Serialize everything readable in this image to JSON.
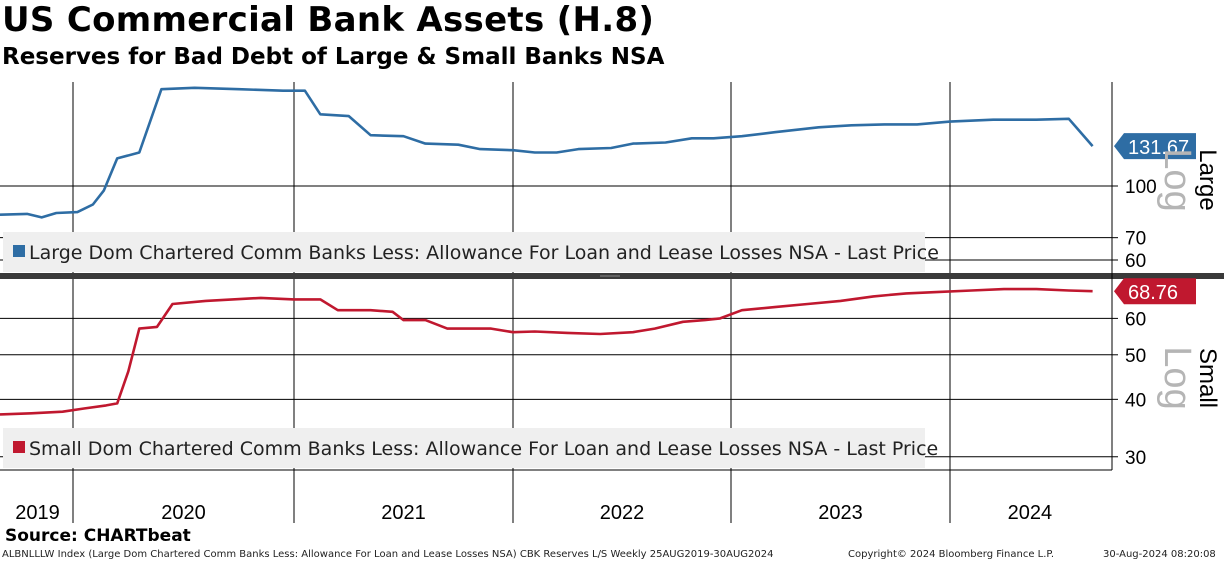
{
  "title": "US Commercial Bank Assets (H.8)",
  "subtitle": "Reserves for Bad Debt of Large & Small Banks NSA",
  "source": "Source: CHARTbeat",
  "footer": {
    "left": "ALBNLLLW Index (Large Dom Chartered Comm Banks Less: Allowance For Loan and Lease Losses NSA) CBK Reserves L/S  Weekly 25AUG2019-30AUG2024",
    "copyright": "Copyright© 2024 Bloomberg Finance L.P.",
    "timestamp": "30-Aug-2024 08:20:08"
  },
  "chart_data": {
    "type": "line",
    "x_tick_labels": [
      "2019",
      "2020",
      "2021",
      "2022",
      "2023",
      "2024"
    ],
    "x_range": [
      "2019-08-25",
      "2024-08-30"
    ],
    "panels": [
      {
        "name": "Large",
        "scale_label": "Log",
        "color": "#2e6da4",
        "legend": "Large Dom Chartered Comm Banks Less: Allowance For Loan and Lease Losses NSA - Last Price",
        "last_value": 131.67,
        "last_value_label": "131.67",
        "y_ticks": [
          60,
          70,
          100
        ],
        "y_range_log": [
          56,
          205
        ],
        "points": [
          [
            2019.65,
            82
          ],
          [
            2019.78,
            82.5
          ],
          [
            2019.85,
            80.5
          ],
          [
            2019.92,
            83
          ],
          [
            2020.02,
            83.5
          ],
          [
            2020.09,
            88
          ],
          [
            2020.14,
            97
          ],
          [
            2020.2,
            121
          ],
          [
            2020.3,
            126
          ],
          [
            2020.4,
            195
          ],
          [
            2020.55,
            197
          ],
          [
            2020.75,
            195
          ],
          [
            2020.95,
            193
          ],
          [
            2021.05,
            193
          ],
          [
            2021.12,
            164
          ],
          [
            2021.25,
            162
          ],
          [
            2021.35,
            142
          ],
          [
            2021.5,
            141
          ],
          [
            2021.6,
            134
          ],
          [
            2021.75,
            133
          ],
          [
            2021.85,
            129
          ],
          [
            2022.0,
            128
          ],
          [
            2022.1,
            126
          ],
          [
            2022.2,
            126
          ],
          [
            2022.3,
            129
          ],
          [
            2022.45,
            130
          ],
          [
            2022.55,
            134
          ],
          [
            2022.7,
            135
          ],
          [
            2022.82,
            139
          ],
          [
            2022.92,
            139
          ],
          [
            2023.05,
            141
          ],
          [
            2023.2,
            145
          ],
          [
            2023.4,
            150
          ],
          [
            2023.55,
            152
          ],
          [
            2023.7,
            153
          ],
          [
            2023.85,
            153
          ],
          [
            2024.0,
            156
          ],
          [
            2024.2,
            158
          ],
          [
            2024.4,
            158
          ],
          [
            2024.55,
            159
          ],
          [
            2024.66,
            131.67
          ]
        ]
      },
      {
        "name": "Small",
        "scale_label": "Log",
        "color": "#c0182f",
        "legend": "Small Dom Chartered Comm Banks Less: Allowance For Loan and Lease Losses NSA - Last Price",
        "last_value": 68.76,
        "last_value_label": "68.76",
        "y_ticks": [
          30,
          40,
          50,
          60
        ],
        "y_range_log": [
          28.5,
          72
        ],
        "points": [
          [
            2019.65,
            37.1
          ],
          [
            2019.8,
            37.3
          ],
          [
            2019.95,
            37.6
          ],
          [
            2020.05,
            38.2
          ],
          [
            2020.15,
            38.8
          ],
          [
            2020.2,
            39.2
          ],
          [
            2020.25,
            46
          ],
          [
            2020.3,
            57
          ],
          [
            2020.38,
            57.5
          ],
          [
            2020.45,
            64.5
          ],
          [
            2020.6,
            65.5
          ],
          [
            2020.85,
            66.5
          ],
          [
            2021.0,
            66
          ],
          [
            2021.12,
            66
          ],
          [
            2021.2,
            62.5
          ],
          [
            2021.35,
            62.5
          ],
          [
            2021.45,
            62
          ],
          [
            2021.5,
            59.5
          ],
          [
            2021.6,
            59.5
          ],
          [
            2021.7,
            57
          ],
          [
            2021.9,
            57
          ],
          [
            2022.0,
            56
          ],
          [
            2022.1,
            56.2
          ],
          [
            2022.25,
            55.8
          ],
          [
            2022.4,
            55.5
          ],
          [
            2022.55,
            56
          ],
          [
            2022.65,
            57
          ],
          [
            2022.78,
            59
          ],
          [
            2022.88,
            59.5
          ],
          [
            2022.95,
            60
          ],
          [
            2023.05,
            62.5
          ],
          [
            2023.2,
            63.5
          ],
          [
            2023.35,
            64.5
          ],
          [
            2023.5,
            65.5
          ],
          [
            2023.65,
            67
          ],
          [
            2023.8,
            68
          ],
          [
            2023.95,
            68.5
          ],
          [
            2024.1,
            69
          ],
          [
            2024.25,
            69.5
          ],
          [
            2024.4,
            69.5
          ],
          [
            2024.55,
            69
          ],
          [
            2024.66,
            68.76
          ]
        ]
      }
    ]
  }
}
